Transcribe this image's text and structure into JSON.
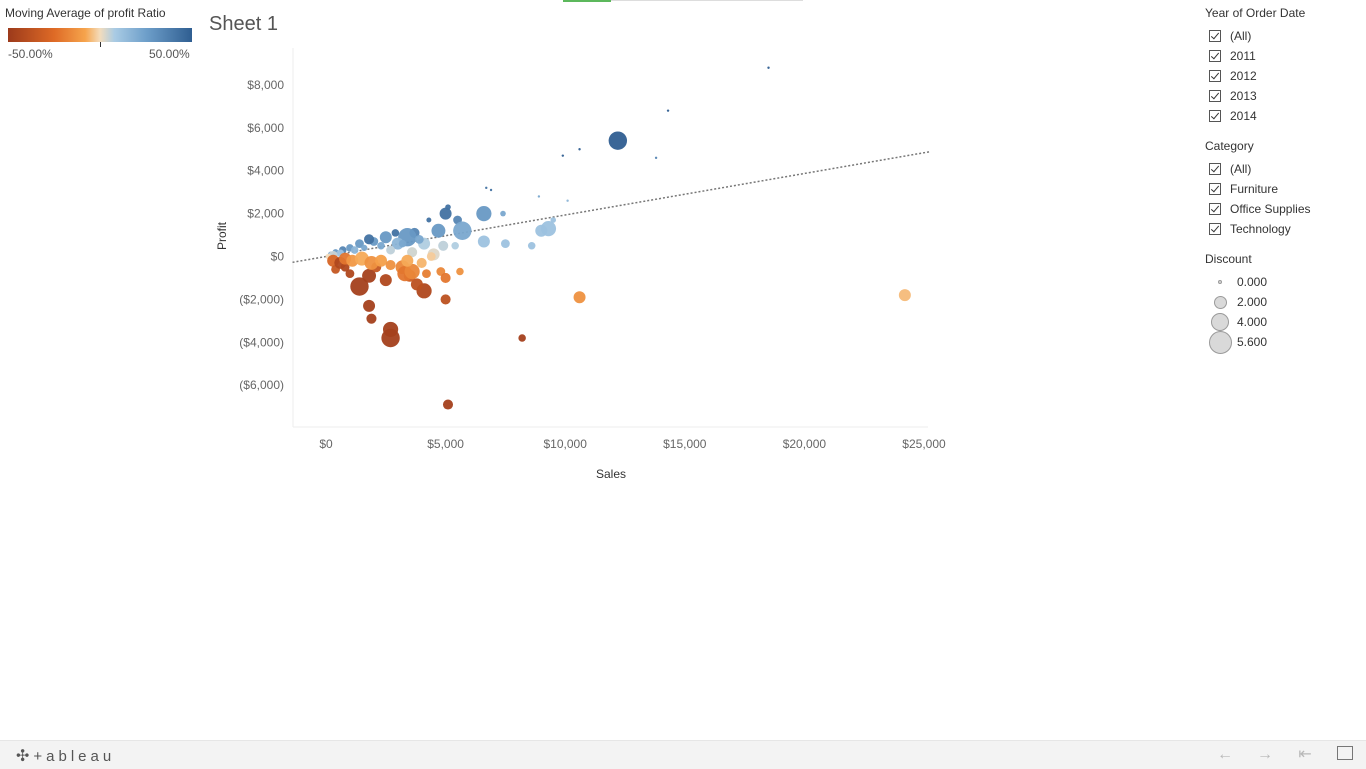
{
  "legend": {
    "color_title": "Moving Average of profit Ratio",
    "min_label": "-50.00%",
    "max_label": "50.00%"
  },
  "sheet": {
    "title": "Sheet 1"
  },
  "filters": {
    "year": {
      "title": "Year of Order Date",
      "items": [
        "(All)",
        "2011",
        "2012",
        "2013",
        "2014"
      ]
    },
    "category": {
      "title": "Category",
      "items": [
        "(All)",
        "Furniture",
        "Office Supplies",
        "Technology"
      ]
    },
    "discount": {
      "title": "Discount",
      "items": [
        "0.000",
        "2.000",
        "4.000",
        "5.600"
      ]
    }
  },
  "bottom_bar": {
    "logo": "+ableau",
    "icons": [
      "tableau-cross-icon",
      "undo-icon",
      "redo-icon",
      "revert-icon",
      "fullscreen-icon"
    ]
  },
  "chart_data": {
    "type": "scatter",
    "xlabel": "Sales",
    "ylabel": "Profit",
    "xlim": [
      -1400,
      25000
    ],
    "ylim": [
      -8000,
      9600
    ],
    "xticks": [
      {
        "v": 0,
        "label": "$0"
      },
      {
        "v": 5000,
        "label": "$5,000"
      },
      {
        "v": 10000,
        "label": "$10,000"
      },
      {
        "v": 15000,
        "label": "$15,000"
      },
      {
        "v": 20000,
        "label": "$20,000"
      },
      {
        "v": 25000,
        "label": "$25,000"
      }
    ],
    "yticks": [
      {
        "v": 8000,
        "label": "$8,000"
      },
      {
        "v": 6000,
        "label": "$6,000"
      },
      {
        "v": 4000,
        "label": "$4,000"
      },
      {
        "v": 2000,
        "label": "$2,000"
      },
      {
        "v": 0,
        "label": "$0"
      },
      {
        "v": -2000,
        "label": "($2,000)"
      },
      {
        "v": -4000,
        "label": "($4,000)"
      },
      {
        "v": -6000,
        "label": "($6,000)"
      }
    ],
    "trend_line": {
      "slope": 0.1935,
      "intercept": 0,
      "style": "dotted"
    },
    "color_scale": [
      "#9c3a1b",
      "#de6a26",
      "#f6a44c",
      "#f3dcbc",
      "#a9cbe4",
      "#6e9fca",
      "#2f5e91"
    ],
    "points": [
      [
        18500,
        8800,
        0.0,
        0.5
      ],
      [
        14300,
        6800,
        0.0,
        0.5
      ],
      [
        12200,
        5400,
        2.5,
        0.5
      ],
      [
        13800,
        4600,
        0.0,
        0.4
      ],
      [
        10600,
        5000,
        0.0,
        0.5
      ],
      [
        9900,
        4700,
        0.0,
        0.5
      ],
      [
        6700,
        3200,
        0.0,
        0.45
      ],
      [
        6900,
        3100,
        0.0,
        0.45
      ],
      [
        8900,
        2800,
        0.0,
        0.3
      ],
      [
        10100,
        2600,
        0.0,
        0.25
      ],
      [
        6600,
        2000,
        2.0,
        0.35
      ],
      [
        9300,
        1300,
        2.0,
        0.2
      ],
      [
        9000,
        1200,
        1.5,
        0.2
      ],
      [
        9500,
        1700,
        0.5,
        0.2
      ],
      [
        7400,
        2000,
        0.5,
        0.3
      ],
      [
        5100,
        2300,
        0.5,
        0.45
      ],
      [
        5000,
        2000,
        1.5,
        0.45
      ],
      [
        5500,
        1700,
        1.0,
        0.4
      ],
      [
        5700,
        1200,
        2.5,
        0.3
      ],
      [
        6600,
        700,
        1.5,
        0.2
      ],
      [
        7500,
        600,
        1.0,
        0.2
      ],
      [
        8600,
        500,
        0.8,
        0.2
      ],
      [
        4300,
        1700,
        0.4,
        0.45
      ],
      [
        4700,
        1200,
        1.8,
        0.35
      ],
      [
        3700,
        1100,
        1.2,
        0.4
      ],
      [
        3400,
        900,
        2.5,
        0.35
      ],
      [
        2900,
        1100,
        0.8,
        0.45
      ],
      [
        2500,
        900,
        1.5,
        0.35
      ],
      [
        2000,
        700,
        1.0,
        0.35
      ],
      [
        1800,
        800,
        1.2,
        0.45
      ],
      [
        1400,
        600,
        1.0,
        0.35
      ],
      [
        1000,
        400,
        0.8,
        0.35
      ],
      [
        700,
        300,
        0.8,
        0.4
      ],
      [
        400,
        200,
        0.6,
        0.35
      ],
      [
        200,
        100,
        0.5,
        0.3
      ],
      [
        3000,
        600,
        1.5,
        0.25
      ],
      [
        4100,
        600,
        1.5,
        0.15
      ],
      [
        4900,
        500,
        1.2,
        0.12
      ],
      [
        4500,
        100,
        1.5,
        0.05
      ],
      [
        3600,
        200,
        1.2,
        0.08
      ],
      [
        2700,
        300,
        1.0,
        0.12
      ],
      [
        5400,
        500,
        0.8,
        0.15
      ],
      [
        3900,
        800,
        1.0,
        0.3
      ],
      [
        3200,
        600,
        0.8,
        0.3
      ],
      [
        2300,
        500,
        0.8,
        0.3
      ],
      [
        1600,
        400,
        0.6,
        0.3
      ],
      [
        1200,
        300,
        0.8,
        0.25
      ],
      [
        600,
        150,
        0.8,
        0.2
      ],
      [
        300,
        60,
        1.0,
        0.1
      ],
      [
        100,
        0,
        0.5,
        0.0
      ],
      [
        300,
        -200,
        1.5,
        -0.35
      ],
      [
        400,
        -600,
        1.0,
        -0.4
      ],
      [
        600,
        -300,
        1.5,
        -0.45
      ],
      [
        800,
        -500,
        1.0,
        -0.45
      ],
      [
        1000,
        -800,
        1.0,
        -0.45
      ],
      [
        1400,
        -1400,
        2.5,
        -0.48
      ],
      [
        1800,
        -900,
        1.8,
        -0.48
      ],
      [
        2100,
        -500,
        1.2,
        -0.4
      ],
      [
        1800,
        -2300,
        1.5,
        -0.48
      ],
      [
        1900,
        -2900,
        1.2,
        -0.48
      ],
      [
        2700,
        -3400,
        2.0,
        -0.48
      ],
      [
        2700,
        -3800,
        2.5,
        -0.48
      ],
      [
        2500,
        -1100,
        1.5,
        -0.45
      ],
      [
        4100,
        -1600,
        2.0,
        -0.45
      ],
      [
        3800,
        -1300,
        1.5,
        -0.42
      ],
      [
        3500,
        -900,
        1.5,
        -0.38
      ],
      [
        5000,
        -2000,
        1.2,
        -0.42
      ],
      [
        8200,
        -3800,
        0.8,
        -0.48
      ],
      [
        5100,
        -6900,
        1.2,
        -0.48
      ],
      [
        800,
        -100,
        1.5,
        -0.3
      ],
      [
        1100,
        -200,
        1.5,
        -0.2
      ],
      [
        1500,
        -100,
        1.8,
        -0.15
      ],
      [
        1900,
        -300,
        1.8,
        -0.22
      ],
      [
        2300,
        -200,
        1.5,
        -0.18
      ],
      [
        2700,
        -400,
        1.2,
        -0.22
      ],
      [
        3200,
        -500,
        1.8,
        -0.25
      ],
      [
        3300,
        -800,
        2.0,
        -0.3
      ],
      [
        3600,
        -700,
        2.0,
        -0.25
      ],
      [
        3400,
        -200,
        1.5,
        -0.15
      ],
      [
        4000,
        -300,
        1.2,
        -0.12
      ],
      [
        4200,
        -800,
        1.0,
        -0.28
      ],
      [
        4800,
        -700,
        1.0,
        -0.25
      ],
      [
        5000,
        -1000,
        1.2,
        -0.3
      ],
      [
        5600,
        -700,
        0.8,
        -0.22
      ],
      [
        4400,
        0,
        1.0,
        -0.05
      ],
      [
        10600,
        -1900,
        1.5,
        -0.22
      ],
      [
        24200,
        -1800,
        1.5,
        -0.1
      ]
    ]
  }
}
